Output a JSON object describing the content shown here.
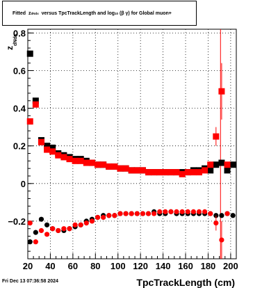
{
  "title": {
    "prefix": "Fitted",
    "z_main": "z",
    "z_sub": "dNdx",
    "middle": "versus TpcTrackLength and log",
    "log_sub": "10",
    "beta_gamma": "(β γ)",
    "suffix": "for Global muon+"
  },
  "footer": {
    "date": "Fri Dec 13 07:36:58 2024"
  },
  "chart_data": {
    "type": "scatter",
    "title": "Fitted z_dNdx versus TpcTrackLength and log10(β γ) for Global muon+",
    "xlabel": "TpcTrackLength (cm)",
    "ylabel_main": "z",
    "ylabel_sub": "dNdx",
    "xlim": [
      20,
      205
    ],
    "ylim": [
      -0.4,
      0.82
    ],
    "xticks": [
      20,
      40,
      60,
      80,
      100,
      120,
      140,
      160,
      180,
      200
    ],
    "yticks": [
      -0.2,
      0,
      0.2,
      0.4,
      0.6,
      0.8
    ],
    "ytick_labels": [
      "−0.2",
      "0",
      "0.2",
      "0.4",
      "0.6",
      "0.8"
    ],
    "grid": true,
    "vertical_line_x": 191,
    "colors": {
      "black_series": "#000000",
      "red_series": "#ff0000",
      "grid": "#000000"
    },
    "series": [
      {
        "marker": "square",
        "color": "#000000",
        "points": [
          [
            22,
            0.69
          ],
          [
            27,
            0.44
          ],
          [
            32,
            0.23
          ],
          [
            37,
            0.2
          ],
          [
            42,
            0.19
          ],
          [
            47,
            0.16
          ],
          [
            52,
            0.15
          ],
          [
            57,
            0.14
          ],
          [
            62,
            0.13
          ],
          [
            67,
            0.13
          ],
          [
            72,
            0.12
          ],
          [
            77,
            0.11
          ],
          [
            82,
            0.1
          ],
          [
            87,
            0.1
          ],
          [
            92,
            0.09
          ],
          [
            97,
            0.09
          ],
          [
            102,
            0.08
          ],
          [
            107,
            0.08
          ],
          [
            112,
            0.07
          ],
          [
            117,
            0.07
          ],
          [
            122,
            0.07
          ],
          [
            127,
            0.06
          ],
          [
            132,
            0.06
          ],
          [
            137,
            0.06
          ],
          [
            142,
            0.06
          ],
          [
            147,
            0.06
          ],
          [
            152,
            0.06
          ],
          [
            157,
            0.06
          ],
          [
            162,
            0.06
          ],
          [
            167,
            0.07
          ],
          [
            172,
            0.07
          ],
          [
            177,
            0.08
          ],
          [
            182,
            0.07
          ],
          [
            187,
            0.1
          ],
          [
            192,
            0.11
          ],
          [
            197,
            0.07
          ],
          [
            202,
            0.1
          ]
        ]
      },
      {
        "marker": "square",
        "color": "#ff0000",
        "points": [
          [
            22,
            0.33
          ],
          [
            27,
            0.42
          ],
          [
            32,
            0.22
          ],
          [
            37,
            0.18
          ],
          [
            42,
            0.17
          ],
          [
            47,
            0.15
          ],
          [
            52,
            0.14
          ],
          [
            57,
            0.13
          ],
          [
            62,
            0.12
          ],
          [
            67,
            0.12
          ],
          [
            72,
            0.11
          ],
          [
            77,
            0.11
          ],
          [
            82,
            0.1
          ],
          [
            87,
            0.1
          ],
          [
            92,
            0.09
          ],
          [
            97,
            0.09
          ],
          [
            102,
            0.08
          ],
          [
            107,
            0.08
          ],
          [
            112,
            0.07
          ],
          [
            117,
            0.07
          ],
          [
            122,
            0.07
          ],
          [
            127,
            0.06
          ],
          [
            132,
            0.06
          ],
          [
            137,
            0.06
          ],
          [
            142,
            0.06
          ],
          [
            147,
            0.06
          ],
          [
            152,
            0.06
          ],
          [
            157,
            0.05
          ],
          [
            162,
            0.06
          ],
          [
            167,
            0.06
          ],
          [
            172,
            0.06
          ],
          [
            177,
            0.07
          ],
          [
            182,
            0.1
          ],
          [
            187,
            0.25
          ],
          [
            192,
            0.49
          ],
          [
            197,
            0.1
          ]
        ],
        "errors": [
          [
            187,
            0.05
          ],
          [
            192,
            0.15
          ]
        ]
      },
      {
        "marker": "circle",
        "color": "#000000",
        "points": [
          [
            22,
            -0.31
          ],
          [
            27,
            -0.26
          ],
          [
            32,
            -0.19
          ],
          [
            37,
            -0.22
          ],
          [
            42,
            -0.24
          ],
          [
            47,
            -0.25
          ],
          [
            52,
            -0.25
          ],
          [
            57,
            -0.24
          ],
          [
            62,
            -0.23
          ],
          [
            67,
            -0.22
          ],
          [
            72,
            -0.2
          ],
          [
            77,
            -0.19
          ],
          [
            82,
            -0.18
          ],
          [
            87,
            -0.17
          ],
          [
            92,
            -0.17
          ],
          [
            97,
            -0.17
          ],
          [
            102,
            -0.16
          ],
          [
            107,
            -0.16
          ],
          [
            112,
            -0.16
          ],
          [
            117,
            -0.16
          ],
          [
            122,
            -0.16
          ],
          [
            127,
            -0.16
          ],
          [
            132,
            -0.15
          ],
          [
            137,
            -0.16
          ],
          [
            142,
            -0.16
          ],
          [
            147,
            -0.15
          ],
          [
            152,
            -0.16
          ],
          [
            157,
            -0.16
          ],
          [
            162,
            -0.16
          ],
          [
            167,
            -0.16
          ],
          [
            172,
            -0.16
          ],
          [
            177,
            -0.16
          ],
          [
            182,
            -0.16
          ],
          [
            187,
            -0.17
          ],
          [
            192,
            -0.17
          ],
          [
            197,
            -0.16
          ],
          [
            202,
            -0.17
          ]
        ]
      },
      {
        "marker": "circle",
        "color": "#ff0000",
        "points": [
          [
            22,
            -0.21
          ],
          [
            27,
            -0.31
          ],
          [
            32,
            -0.25
          ],
          [
            37,
            -0.27
          ],
          [
            42,
            -0.24
          ],
          [
            47,
            -0.25
          ],
          [
            52,
            -0.24
          ],
          [
            57,
            -0.24
          ],
          [
            62,
            -0.22
          ],
          [
            67,
            -0.22
          ],
          [
            72,
            -0.21
          ],
          [
            77,
            -0.2
          ],
          [
            82,
            -0.18
          ],
          [
            87,
            -0.18
          ],
          [
            92,
            -0.17
          ],
          [
            97,
            -0.17
          ],
          [
            102,
            -0.16
          ],
          [
            107,
            -0.16
          ],
          [
            112,
            -0.16
          ],
          [
            117,
            -0.16
          ],
          [
            122,
            -0.16
          ],
          [
            127,
            -0.16
          ],
          [
            132,
            -0.16
          ],
          [
            137,
            -0.15
          ],
          [
            142,
            -0.15
          ],
          [
            147,
            -0.15
          ],
          [
            152,
            -0.15
          ],
          [
            157,
            -0.15
          ],
          [
            162,
            -0.15
          ],
          [
            167,
            -0.15
          ],
          [
            172,
            -0.15
          ],
          [
            177,
            -0.15
          ],
          [
            182,
            -0.16
          ],
          [
            187,
            -0.21
          ],
          [
            192,
            -0.3
          ],
          [
            197,
            -0.16
          ]
        ],
        "errors": [
          [
            187,
            0.04
          ],
          [
            192,
            0.1
          ]
        ]
      }
    ]
  }
}
